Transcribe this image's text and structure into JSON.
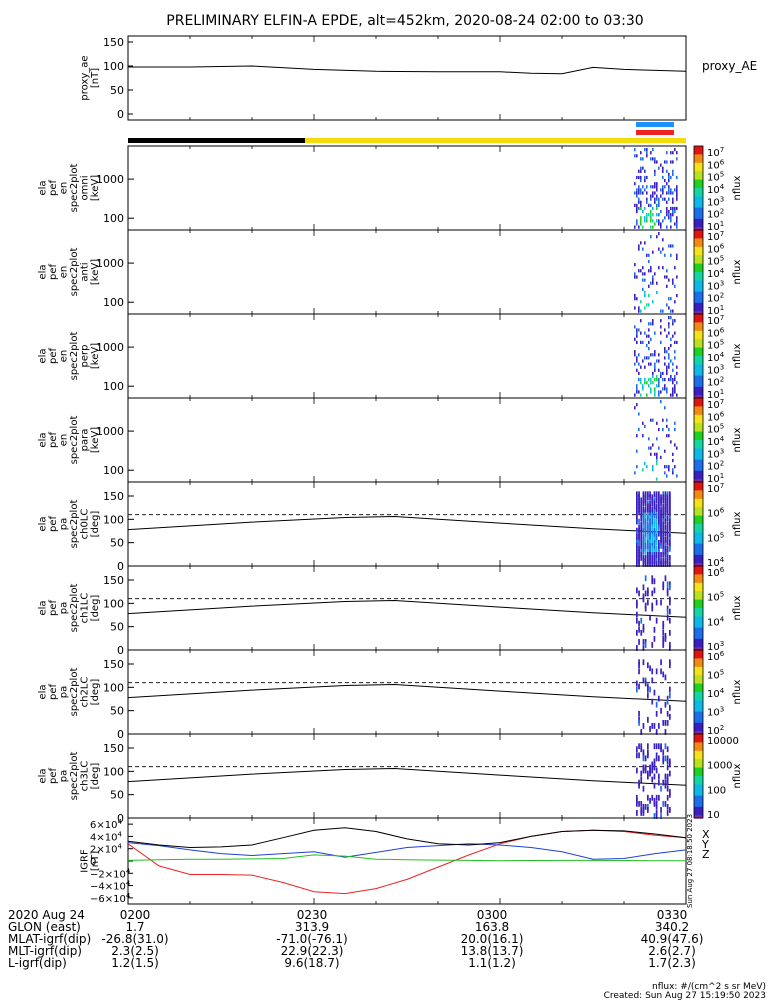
{
  "title": "PRELIMINARY ELFIN-A EPDE, alt=452km, 2020-08-24 02:00 to 03:30",
  "time_axis": {
    "start": "02:00",
    "end": "03:30",
    "ticks": [
      "0200",
      "0230",
      "0300",
      "0330"
    ]
  },
  "footer": {
    "rows": [
      {
        "label": "2020 Aug 24",
        "values": [
          "0200",
          "0230",
          "0300",
          "0330"
        ]
      },
      {
        "label": "GLON (east)",
        "values": [
          "1.7",
          "313.9",
          "163.8",
          "340.2"
        ]
      },
      {
        "label": "MLAT-igrf(dip)",
        "values": [
          "-26.8(31.0)",
          "-71.0(-76.1)",
          "20.0(16.1)",
          "40.9(47.6)"
        ]
      },
      {
        "label": "MLT-igrf(dip)",
        "values": [
          "2.3(2.5)",
          "22.9(22.3)",
          "13.8(13.7)",
          "2.6(2.7)"
        ]
      },
      {
        "label": "L-igrf(dip)",
        "values": [
          "1.2(1.5)",
          "9.6(18.7)",
          "1.1(1.2)",
          "1.7(2.3)"
        ]
      }
    ],
    "units_note": "nflux: #/(cm^2 s sr MeV)",
    "created": "Created: Sun Aug 27 15:19:50 2023",
    "side_stamp": "Sun Aug 27 08:18:50 2023"
  },
  "colors": {
    "sunlit_bar": "#f4dc0c",
    "shadow_bar": "#000000",
    "bar_blue": "#1e90ff",
    "bar_red": "#ee2222",
    "grf_x": "#ee2222",
    "grf_y": "#1f3fd8",
    "grf_z": "#22c022",
    "grf_total": "#000000"
  },
  "chart_data": [
    {
      "type": "line",
      "id": "proxy_ae",
      "ylabel": [
        "proxy_ae",
        "[nT]"
      ],
      "legend": "proxy_AE",
      "ylim": [
        0,
        150
      ],
      "yticks": [
        "150",
        "100",
        "50",
        "0"
      ],
      "x": [
        "02:00",
        "02:10",
        "02:20",
        "02:30",
        "02:40",
        "02:50",
        "03:00",
        "03:05",
        "03:10",
        "03:15",
        "03:20",
        "03:30"
      ],
      "values": [
        98,
        98,
        100,
        93,
        89,
        88,
        88,
        85,
        84,
        97,
        93,
        89
      ]
    },
    {
      "type": "heatmap",
      "id": "en_omni",
      "ylabel": [
        "ela",
        "pef",
        "en",
        "spec2plot",
        "omni",
        "[keV]"
      ],
      "yaxis": "log",
      "ylim": [
        50,
        7000
      ],
      "yticks": [
        "1000",
        "100"
      ],
      "colorbar": {
        "label": "nflux",
        "scale": "log",
        "ticks": [
          "10^7",
          "10^6",
          "10^5",
          "10^4",
          "10^3",
          "10^2",
          "10^1"
        ]
      }
    },
    {
      "type": "heatmap",
      "id": "en_anti",
      "ylabel": [
        "ela",
        "pef",
        "en",
        "spec2plot",
        "anti",
        "[keV]"
      ],
      "yaxis": "log",
      "ylim": [
        50,
        7000
      ],
      "yticks": [
        "1000",
        "100"
      ],
      "colorbar": {
        "label": "nflux",
        "scale": "log",
        "ticks": [
          "10^7",
          "10^6",
          "10^5",
          "10^4",
          "10^3",
          "10^2",
          "10^1"
        ]
      }
    },
    {
      "type": "heatmap",
      "id": "en_perp",
      "ylabel": [
        "ela",
        "pef",
        "en",
        "spec2plot",
        "perp",
        "[keV]"
      ],
      "yaxis": "log",
      "ylim": [
        50,
        7000
      ],
      "yticks": [
        "1000",
        "100"
      ],
      "colorbar": {
        "label": "nflux",
        "scale": "log",
        "ticks": [
          "10^7",
          "10^6",
          "10^5",
          "10^4",
          "10^3",
          "10^2",
          "10^1"
        ]
      }
    },
    {
      "type": "heatmap",
      "id": "en_para",
      "ylabel": [
        "ela",
        "pef",
        "en",
        "spec2plot",
        "para",
        "[keV]"
      ],
      "yaxis": "log",
      "ylim": [
        50,
        7000
      ],
      "yticks": [
        "1000",
        "100"
      ],
      "colorbar": {
        "label": "nflux",
        "scale": "log",
        "ticks": [
          "10^7",
          "10^6",
          "10^5",
          "10^4",
          "10^3",
          "10^2",
          "10^1"
        ]
      }
    },
    {
      "type": "heatmap",
      "id": "pa_ch0",
      "ylabel": [
        "ela",
        "pef",
        "pa",
        "spec2plot",
        "ch0LC",
        "[deg]"
      ],
      "ylim": [
        0,
        180
      ],
      "yticks": [
        "150",
        "100",
        "50",
        "0"
      ],
      "colorbar": {
        "label": "nflux",
        "scale": "log",
        "ticks": [
          "10^7",
          "10^6",
          "10^5",
          "10^4"
        ]
      }
    },
    {
      "type": "heatmap",
      "id": "pa_ch1",
      "ylabel": [
        "ela",
        "pef",
        "pa",
        "spec2plot",
        "ch1LC",
        "[deg]"
      ],
      "ylim": [
        0,
        180
      ],
      "yticks": [
        "150",
        "100",
        "50",
        "0"
      ],
      "colorbar": {
        "label": "nflux",
        "scale": "log",
        "ticks": [
          "10^6",
          "10^5",
          "10^4",
          "10^3"
        ]
      }
    },
    {
      "type": "heatmap",
      "id": "pa_ch2",
      "ylabel": [
        "ela",
        "pef",
        "pa",
        "spec2plot",
        "ch2LC",
        "[deg]"
      ],
      "ylim": [
        0,
        180
      ],
      "yticks": [
        "150",
        "100",
        "50",
        "0"
      ],
      "colorbar": {
        "label": "nflux",
        "scale": "log",
        "ticks": [
          "10^6",
          "10^5",
          "10^4",
          "10^3",
          "10^2"
        ]
      }
    },
    {
      "type": "heatmap",
      "id": "pa_ch3",
      "ylabel": [
        "ela",
        "pef",
        "pa",
        "spec2plot",
        "ch3LC",
        "[deg]"
      ],
      "ylim": [
        0,
        180
      ],
      "yticks": [
        "150",
        "100",
        "50",
        "0"
      ],
      "colorbar": {
        "label": "nflux",
        "scale": "log",
        "ticks": [
          "10000",
          "1000",
          "100",
          "10"
        ]
      }
    },
    {
      "type": "line",
      "id": "igrf",
      "ylabel": [
        "IGRF",
        "[nT]"
      ],
      "ylim": [
        -70000,
        70000
      ],
      "yticks": [
        "6×10^4",
        "4×10^4",
        "2×10^4",
        "0",
        "−2×10^4",
        "−4×10^4",
        "−6×10^4"
      ],
      "legend": [
        "X",
        "Y",
        "Z"
      ],
      "x": [
        "02:00",
        "02:05",
        "02:10",
        "02:15",
        "02:20",
        "02:25",
        "02:30",
        "02:35",
        "02:40",
        "02:45",
        "02:50",
        "02:55",
        "03:00",
        "03:05",
        "03:10",
        "03:15",
        "03:20",
        "03:25",
        "03:30"
      ],
      "series": [
        {
          "name": "X",
          "values": [
            28000,
            -8000,
            -22000,
            -22000,
            -23000,
            -35000,
            -50000,
            -53000,
            -45000,
            -30000,
            -10000,
            10000,
            28000,
            40000,
            48000,
            50000,
            48000,
            42000,
            38000
          ]
        },
        {
          "name": "Y",
          "values": [
            30000,
            25000,
            18000,
            12000,
            9000,
            12000,
            15000,
            6000,
            14000,
            22000,
            25000,
            28000,
            26000,
            22000,
            15000,
            3000,
            4000,
            12000,
            18000
          ]
        },
        {
          "name": "Z",
          "values": [
            1000,
            2000,
            3000,
            3000,
            3500,
            4000,
            10000,
            8000,
            3000,
            2000,
            1500,
            1000,
            500,
            800,
            1000,
            1000,
            800,
            500,
            300
          ]
        },
        {
          "name": "",
          "values": [
            32000,
            26000,
            22000,
            23000,
            26000,
            38000,
            50000,
            54000,
            48000,
            36000,
            28000,
            26000,
            30000,
            40000,
            48000,
            50000,
            49000,
            44000,
            38000
          ]
        }
      ]
    }
  ]
}
